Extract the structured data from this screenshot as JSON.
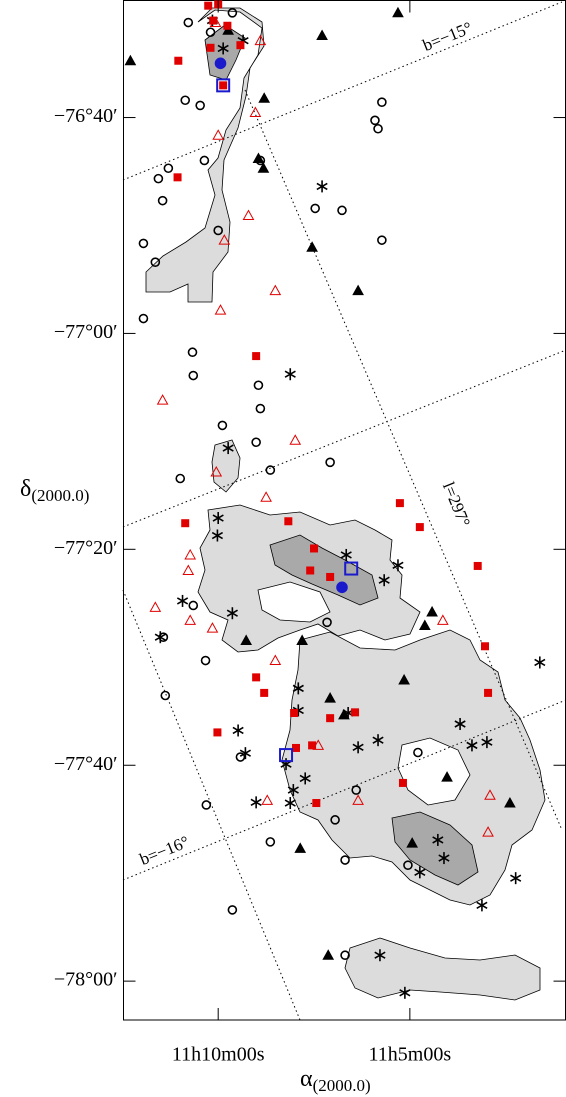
{
  "chart_data": {
    "type": "scatter",
    "xlabel": {
      "symbol": "α",
      "subscript": "(2000.0)"
    },
    "ylabel": {
      "symbol": "δ",
      "subscript": "(2000.0)"
    },
    "annotations": [
      "b=−15°",
      "b=−16°",
      "l=297°"
    ],
    "xlim": [
      12.47,
      0.94
    ],
    "ylim": [
      -76.486,
      -78.06
    ],
    "xticks": [
      {
        "value": 10,
        "label": "11h10m00s"
      },
      {
        "value": 5,
        "label": "11h5m00s"
      }
    ],
    "yticks": [
      {
        "value": -76.6667,
        "label": "−76°40′"
      },
      {
        "value": -77,
        "label": "−77°00′"
      },
      {
        "value": -77.3333,
        "label": "−77°20′"
      },
      {
        "value": -77.6667,
        "label": "−77°40′"
      },
      {
        "value": -78,
        "label": "−78°00′"
      }
    ],
    "series": [
      {
        "marker": "circle",
        "filled": false,
        "color": "#000000",
        "x": [
          10.78,
          9.63,
          10.2,
          10.86,
          10.47,
          5.73,
          5.91,
          5.83,
          11.3,
          11.56,
          10.36,
          8.9,
          11.45,
          11.95,
          11.64,
          10.0,
          7.47,
          6.77,
          5.73,
          11.95,
          10.67,
          10.65,
          8.95,
          8.9,
          9.89,
          9.01,
          10.99,
          8.64,
          7.08,
          10.65,
          11.43,
          10.33,
          11.38,
          9.42,
          10.31,
          8.64,
          9.63,
          6.69,
          5.05,
          6.69,
          4.79,
          6.4,
          7.16,
          6.95
        ],
        "values": [
          -76.52,
          -76.505,
          -76.535,
          -76.64,
          -76.648,
          -76.643,
          -76.671,
          -76.684,
          -76.745,
          -76.761,
          -76.733,
          -76.733,
          -76.795,
          -76.861,
          -76.89,
          -76.841,
          -76.807,
          -76.81,
          -76.856,
          -76.977,
          -77.029,
          -77.065,
          -77.08,
          -77.116,
          -77.142,
          -77.168,
          -77.224,
          -77.211,
          -77.199,
          -77.42,
          -77.469,
          -77.505,
          -77.559,
          -77.654,
          -77.728,
          -77.785,
          -77.89,
          -77.813,
          -77.821,
          -77.96,
          -77.647,
          -77.705,
          -77.446,
          -77.751
        ]
      },
      {
        "marker": "asterisk",
        "filled": false,
        "color": "#000000",
        "x": [
          10.15,
          9.35,
          9.87,
          7.29,
          8.12,
          9.74,
          10.0,
          10.02,
          6.66,
          5.31,
          5.67,
          11.51,
          10.93,
          9.63,
          7.91,
          7.91,
          9.48,
          9.29,
          7.73,
          8.23,
          8.04,
          9.01,
          8.12,
          6.61,
          6.35,
          5.83,
          3.69,
          3.38,
          2.99,
          1.61,
          4.27,
          4.11,
          2.24,
          3.12,
          5.78,
          5.13,
          4.74
        ],
        "values": [
          -76.517,
          -76.548,
          -76.56,
          -76.773,
          -77.063,
          -77.177,
          -77.285,
          -77.312,
          -77.342,
          -77.358,
          -77.381,
          -77.469,
          -77.413,
          -77.432,
          -77.548,
          -77.582,
          -77.613,
          -77.648,
          -77.687,
          -77.665,
          -77.705,
          -77.724,
          -77.725,
          -77.586,
          -77.639,
          -77.628,
          -77.603,
          -77.636,
          -77.631,
          -77.508,
          -77.782,
          -77.81,
          -77.841,
          -77.883,
          -77.96,
          -78.018,
          -77.832
        ]
      },
      {
        "marker": "triangle",
        "filled": true,
        "color": "#000000",
        "x": [
          12.29,
          9.74,
          7.29,
          5.31,
          8.8,
          8.95,
          8.82,
          7.55,
          6.35,
          4.61,
          4.42,
          5.15,
          6.72,
          7.08,
          9.27,
          7.81,
          4.03,
          2.39,
          4.94,
          7.86,
          7.13
        ],
        "values": [
          -76.579,
          -76.532,
          -76.54,
          -76.505,
          -76.637,
          -76.73,
          -76.745,
          -76.867,
          -76.934,
          -77.451,
          -77.43,
          -77.535,
          -77.589,
          -77.563,
          -77.474,
          -77.474,
          -77.685,
          -77.725,
          -77.787,
          -77.795,
          -77.96
        ]
      },
      {
        "marker": "triangle",
        "filled": false,
        "color": "#e00000",
        "x": [
          10.07,
          8.9,
          10.0,
          9.03,
          9.21,
          9.84,
          8.51,
          9.94,
          11.45,
          7.99,
          10.05,
          8.75,
          10.73,
          10.78,
          11.64,
          10.15,
          10.73,
          8.51,
          4.14,
          7.39,
          6.35,
          2.96,
          8.72,
          2.91
        ],
        "values": [
          -76.52,
          -76.548,
          -76.694,
          -76.659,
          -76.818,
          -76.856,
          -76.934,
          -76.964,
          -77.103,
          -77.165,
          -77.214,
          -77.253,
          -77.342,
          -77.366,
          -77.423,
          -77.455,
          -77.443,
          -77.505,
          -77.443,
          -77.636,
          -77.721,
          -77.77,
          -77.721,
          -77.713
        ]
      },
      {
        "marker": "square",
        "filled": true,
        "color": "#e00000",
        "x": [
          10.26,
          10.0,
          10.13,
          9.76,
          10.2,
          11.04,
          9.42,
          9.87,
          11.06,
          9.01,
          10.86,
          8.17,
          7.5,
          7.6,
          7.08,
          5.26,
          4.74,
          3.23,
          3.04,
          2.96,
          9.01,
          10.02,
          8.8,
          7.97,
          8.02,
          7.55,
          7.08,
          6.43,
          7.44,
          5.18
        ],
        "values": [
          -76.494,
          -76.492,
          -76.517,
          -76.525,
          -76.559,
          -76.579,
          -76.555,
          -76.617,
          -76.759,
          -77.035,
          -77.293,
          -77.29,
          -77.332,
          -77.366,
          -77.376,
          -77.262,
          -77.299,
          -77.359,
          -77.483,
          -77.555,
          -77.531,
          -77.616,
          -77.555,
          -77.64,
          -77.586,
          -77.636,
          -77.594,
          -77.585,
          -77.725,
          -77.694
        ]
      },
      {
        "marker": "square",
        "filled": false,
        "color": "#1a1acc",
        "x": [
          9.87,
          6.53,
          8.23
        ],
        "values": [
          -76.617,
          -77.363,
          -77.651
        ]
      },
      {
        "marker": "circle",
        "filled": true,
        "color": "#1a1acc",
        "x": [
          9.94,
          6.77
        ],
        "values": [
          -76.583,
          -77.392
        ]
      }
    ]
  }
}
